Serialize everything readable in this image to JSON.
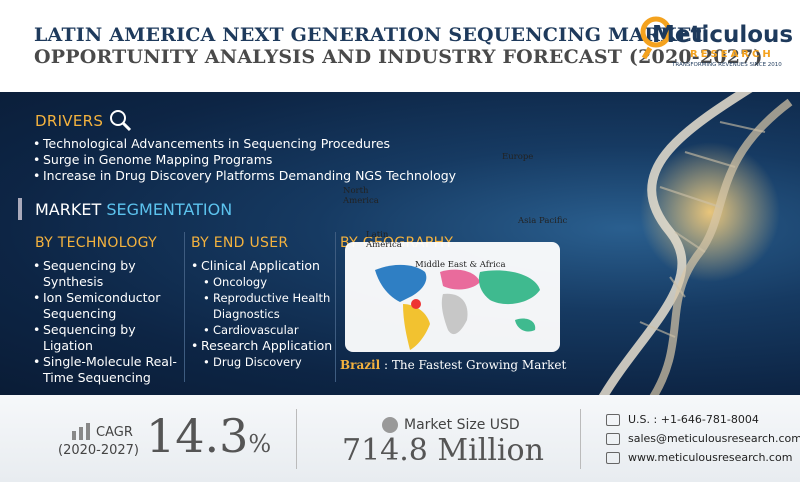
{
  "header": {
    "title_line1": "LATIN AMERICA NEXT GENERATION SEQUENCING MARKET",
    "title_line2": "OPPORTUNITY ANALYSIS AND INDUSTRY FORECAST (2020-2027)",
    "logo": {
      "name": "Meticulous",
      "sub": "RESEARCH",
      "tagline": "TRANSFORMING REVENUES SINCE 2010"
    }
  },
  "drivers": {
    "title": "DRIVERS",
    "items": [
      "Technological Advancements in Sequencing Procedures",
      "Surge in Genome Mapping Programs",
      "Increase in Drug Discovery Platforms Demanding NGS Technology"
    ]
  },
  "segmentation": {
    "title_part1": "MARKET",
    "title_part2": "SEGMENTATION",
    "technology": {
      "title": "BY TECHNOLOGY",
      "items": [
        "Sequencing by Synthesis",
        "Ion Semiconductor Sequencing",
        "Sequencing by Ligation",
        "Single-Molecule Real-Time Sequencing"
      ]
    },
    "end_user": {
      "title": "BY END USER",
      "items": [
        {
          "text": "Clinical Application",
          "sub": [
            "Oncology",
            "Reproductive Health Diagnostics",
            "Cardiovascular"
          ]
        },
        {
          "text": "Research Application",
          "sub": [
            "Drug Discovery"
          ]
        }
      ]
    },
    "geography": {
      "title": "BY GEOGRAPHY",
      "regions": [
        "Europe",
        "North America",
        "Latin America",
        "Asia Pacific",
        "Middle East & Africa"
      ],
      "highlight": "Brazil",
      "highlight_text": " : The Fastest Growing Market"
    }
  },
  "footer": {
    "cagr_label": "CAGR",
    "cagr_period": "(2020-2027)",
    "cagr_value": "14.3",
    "cagr_unit": "%",
    "market_label": "Market Size USD",
    "market_value": "714.8 Million",
    "contacts": [
      "U.S. : +1-646-781-8004",
      "sales@meticulousresearch.com",
      "www.meticulousresearch.com"
    ]
  }
}
